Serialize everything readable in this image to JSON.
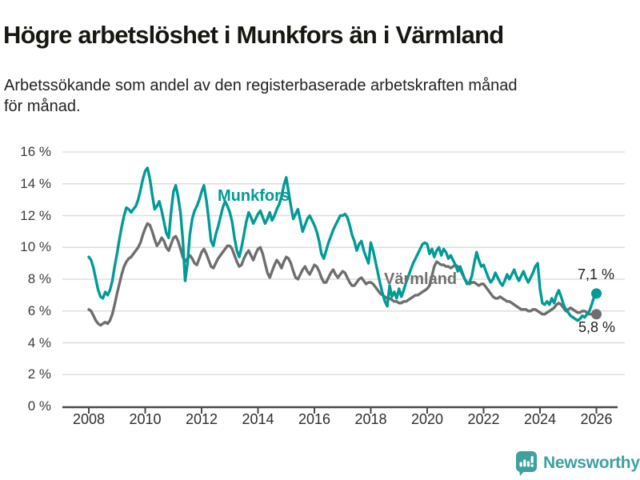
{
  "header": {
    "title": "Högre arbetslöshet i Munkfors än i Värmland",
    "subtitle": "Arbetssökande som andel av den registerbaserade arbetskraften månad\nför månad."
  },
  "colors": {
    "munkfors_line": "#009B94",
    "varmland_line": "#6E6E6E",
    "gridline": "#DEDEDE",
    "axis": "#4A4A4A",
    "brand_teal": "#3FA09E"
  },
  "annotations": {
    "munkfors_label": "Munkfors",
    "varmland_label": "Värmland",
    "munkfors_end_value": "7,1 %",
    "varmland_end_value": "5,8 %"
  },
  "footer": {
    "brand": "Newsworthy",
    "logo_icon": "bar-chart-speech-bubble"
  },
  "chart_data": {
    "type": "line",
    "title": "Högre arbetslöshet i Munkfors än i Värmland",
    "subtitle": "Arbetssökande som andel av den registerbaserade arbetskraften månad för månad.",
    "x_unit": "month",
    "x_start": "2008-01",
    "x_end": "2026-01",
    "ylim": [
      0,
      16
    ],
    "grid": true,
    "legend_position": "inline-labels",
    "y_tick_values": [
      0,
      2,
      4,
      6,
      8,
      10,
      12,
      14,
      16
    ],
    "y_tick_labels": [
      "0 %",
      "2 %",
      "4 %",
      "6 %",
      "8 %",
      "10 %",
      "12 %",
      "14 %",
      "16 %"
    ],
    "x_tick_values": [
      2008,
      2010,
      2012,
      2014,
      2016,
      2018,
      2020,
      2022,
      2024,
      2026
    ],
    "x_tick_labels": [
      "2008",
      "2010",
      "2012",
      "2014",
      "2016",
      "2018",
      "2020",
      "2022",
      "2024",
      "2026"
    ],
    "series": [
      {
        "name": "Värmland",
        "color": "#6E6E6E",
        "end_label": "5,8 %",
        "end_value": 5.8,
        "values": [
          6.1,
          6.0,
          5.7,
          5.4,
          5.2,
          5.1,
          5.2,
          5.3,
          5.2,
          5.4,
          5.8,
          6.4,
          7.1,
          7.7,
          8.3,
          8.8,
          9.1,
          9.3,
          9.4,
          9.6,
          9.8,
          10.0,
          10.3,
          10.8,
          11.2,
          11.5,
          11.4,
          11.0,
          10.5,
          10.1,
          10.3,
          10.6,
          10.4,
          10.0,
          9.8,
          10.2,
          10.6,
          10.7,
          10.4,
          9.9,
          9.4,
          9.1,
          9.3,
          9.5,
          9.3,
          9.0,
          8.9,
          9.3,
          9.7,
          9.9,
          9.6,
          9.2,
          8.8,
          8.7,
          9.0,
          9.3,
          9.5,
          9.7,
          9.9,
          10.1,
          10.1,
          9.9,
          9.5,
          9.1,
          8.8,
          8.9,
          9.3,
          9.6,
          9.8,
          9.5,
          9.2,
          9.6,
          9.9,
          10.0,
          9.6,
          9.0,
          8.4,
          8.1,
          8.5,
          8.9,
          9.2,
          9.0,
          8.7,
          9.1,
          9.4,
          9.3,
          9.0,
          8.5,
          8.1,
          8.0,
          8.3,
          8.6,
          8.8,
          8.5,
          8.3,
          8.6,
          8.9,
          8.8,
          8.5,
          8.1,
          7.8,
          7.8,
          8.1,
          8.4,
          8.6,
          8.3,
          8.1,
          8.3,
          8.5,
          8.4,
          8.1,
          7.8,
          7.6,
          7.6,
          7.8,
          8.0,
          8.1,
          7.9,
          7.7,
          7.8,
          7.8,
          7.7,
          7.5,
          7.3,
          7.1,
          7.0,
          6.9,
          6.8,
          6.8,
          6.7,
          6.6,
          6.6,
          6.5,
          6.5,
          6.6,
          6.6,
          6.7,
          6.8,
          6.9,
          7.0,
          7.0,
          7.1,
          7.2,
          7.3,
          7.4,
          7.6,
          8.2,
          8.8,
          9.1,
          9.0,
          8.9,
          8.9,
          8.8,
          8.8,
          8.7,
          8.8,
          8.9,
          8.8,
          8.6,
          8.3,
          8.0,
          7.8,
          7.7,
          7.8,
          7.8,
          7.7,
          7.6,
          7.7,
          7.7,
          7.5,
          7.3,
          7.1,
          6.9,
          6.8,
          6.8,
          6.9,
          6.8,
          6.7,
          6.6,
          6.6,
          6.5,
          6.4,
          6.3,
          6.2,
          6.1,
          6.1,
          6.1,
          6.0,
          6.0,
          6.1,
          6.1,
          6.0,
          5.9,
          5.8,
          5.8,
          5.9,
          6.0,
          6.1,
          6.2,
          6.4,
          6.5,
          6.4,
          6.2,
          6.0,
          6.1,
          6.2,
          6.1,
          6.0,
          5.9,
          5.9,
          6.0,
          6.0,
          5.9,
          5.8,
          5.8,
          5.8,
          5.8
        ]
      },
      {
        "name": "Munkfors",
        "color": "#009B94",
        "end_label": "7,1 %",
        "end_value": 7.1,
        "values": [
          9.4,
          9.2,
          8.7,
          8.0,
          7.3,
          6.9,
          6.8,
          7.2,
          7.0,
          7.3,
          7.9,
          8.8,
          9.6,
          10.5,
          11.3,
          12.0,
          12.5,
          12.4,
          12.2,
          12.4,
          12.6,
          13.0,
          13.6,
          14.3,
          14.8,
          15.0,
          14.3,
          13.3,
          12.4,
          12.6,
          12.9,
          12.3,
          11.6,
          10.9,
          10.6,
          12.2,
          13.5,
          13.9,
          13.2,
          12.2,
          10.5,
          7.9,
          9.0,
          10.8,
          11.8,
          12.3,
          12.6,
          13.0,
          13.5,
          13.9,
          13.0,
          11.8,
          10.4,
          10.1,
          10.8,
          11.3,
          11.9,
          12.5,
          12.9,
          12.6,
          12.2,
          11.6,
          10.6,
          9.8,
          9.4,
          10.0,
          10.8,
          11.6,
          12.2,
          11.9,
          11.5,
          11.8,
          12.1,
          12.3,
          11.9,
          11.5,
          11.8,
          12.2,
          11.7,
          12.0,
          12.4,
          12.7,
          13.2,
          13.9,
          14.4,
          13.5,
          12.6,
          11.8,
          12.1,
          12.4,
          11.7,
          11.0,
          11.4,
          11.8,
          12.0,
          11.7,
          11.4,
          11.0,
          10.4,
          9.6,
          9.3,
          9.8,
          10.3,
          10.7,
          11.1,
          11.4,
          11.7,
          12.0,
          12.0,
          12.1,
          11.9,
          11.4,
          10.8,
          10.4,
          9.8,
          10.2,
          10.4,
          9.8,
          9.4,
          9.0,
          10.3,
          9.8,
          9.1,
          8.4,
          7.7,
          7.1,
          6.6,
          6.3,
          7.6,
          6.9,
          7.2,
          6.8,
          7.4,
          6.9,
          7.3,
          7.8,
          8.2,
          8.6,
          9.0,
          9.3,
          9.6,
          9.9,
          10.2,
          10.3,
          10.2,
          9.6,
          9.9,
          9.4,
          9.8,
          10.0,
          9.5,
          9.9,
          9.7,
          9.3,
          9.5,
          9.2,
          8.9,
          8.5,
          8.8,
          8.4,
          8.0,
          7.7,
          7.8,
          8.2,
          9.0,
          9.7,
          9.2,
          8.8,
          8.9,
          8.5,
          8.1,
          7.8,
          8.0,
          8.4,
          8.1,
          7.8,
          7.6,
          7.9,
          8.3,
          8.0,
          8.3,
          8.6,
          8.2,
          7.9,
          8.2,
          8.5,
          8.1,
          7.8,
          8.1,
          8.4,
          8.8,
          9.0,
          7.4,
          6.5,
          6.4,
          6.6,
          6.4,
          6.8,
          6.5,
          7.0,
          7.3,
          6.9,
          6.4,
          6.1,
          5.9,
          5.7,
          5.6,
          5.5,
          5.4,
          5.5,
          5.7,
          5.6,
          5.8,
          6.0,
          6.4,
          6.9,
          7.1
        ]
      }
    ]
  }
}
